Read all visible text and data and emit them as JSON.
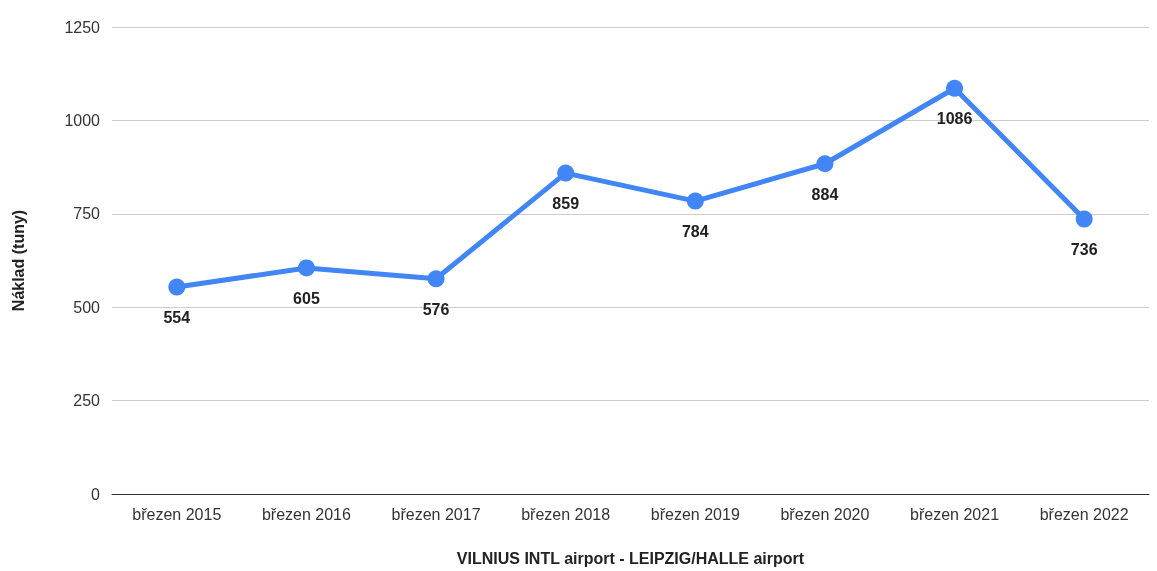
{
  "chart_data": {
    "type": "line",
    "xlabel": "VILNIUS INTL airport - LEIPZIG/HALLE airport",
    "ylabel": "Náklad (tuny)",
    "categories": [
      "březen 2015",
      "březen 2016",
      "březen 2017",
      "březen 2018",
      "březen 2019",
      "březen 2020",
      "březen 2021",
      "březen 2022"
    ],
    "series": [
      {
        "color": "#4285f4",
        "values": [
          554,
          605,
          576,
          859,
          784,
          884,
          1086,
          736
        ]
      }
    ],
    "ylim": [
      0,
      1250
    ],
    "yticks": [
      0,
      250,
      500,
      750,
      1000,
      1250
    ],
    "grid": "y",
    "marker": "circle",
    "line_style": "solid",
    "data_labels": true
  }
}
